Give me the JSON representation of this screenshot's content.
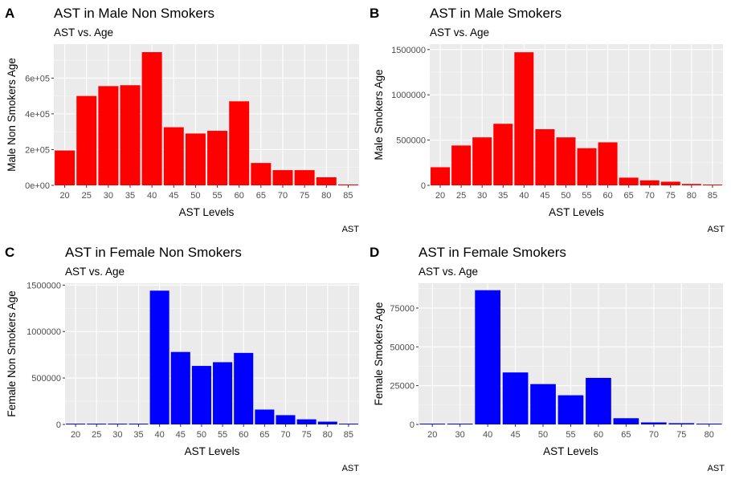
{
  "chart_data": [
    {
      "type": "bar",
      "tag": "A",
      "title": "AST in Male Non Smokers",
      "subtitle": "AST vs. Age",
      "xlabel": "AST Levels",
      "ylabel": "Male Non Smokers Age",
      "caption": "AST",
      "bar_color": "#ff0000",
      "categories": [
        "20",
        "25",
        "30",
        "35",
        "40",
        "45",
        "50",
        "55",
        "60",
        "65",
        "70",
        "75",
        "80",
        "85"
      ],
      "values": [
        195000,
        500000,
        555000,
        560000,
        745000,
        325000,
        290000,
        305000,
        470000,
        125000,
        85000,
        85000,
        45000,
        5000
      ],
      "ylim": [
        0,
        790000
      ],
      "yticks": [
        0,
        200000,
        400000,
        600000
      ],
      "ytick_labels": [
        "0e+00",
        "2e+05",
        "4e+05",
        "6e+05"
      ]
    },
    {
      "type": "bar",
      "tag": "B",
      "title": "AST in Male Smokers",
      "subtitle": "AST vs. Age",
      "xlabel": "AST Levels",
      "ylabel": "Male Smokers Age",
      "caption": "AST",
      "bar_color": "#ff0000",
      "categories": [
        "20",
        "25",
        "30",
        "35",
        "40",
        "45",
        "50",
        "55",
        "60",
        "65",
        "70",
        "75",
        "80",
        "85"
      ],
      "values": [
        200000,
        440000,
        530000,
        680000,
        1470000,
        620000,
        530000,
        410000,
        475000,
        85000,
        55000,
        40000,
        15000,
        5000
      ],
      "ylim": [
        0,
        1560000
      ],
      "yticks": [
        0,
        500000,
        1000000,
        1500000
      ],
      "ytick_labels": [
        "0",
        "500000",
        "1000000",
        "1500000"
      ]
    },
    {
      "type": "bar",
      "tag": "C",
      "title": "AST in Female Non Smokers",
      "subtitle": "AST vs. Age",
      "xlabel": "AST Levels",
      "ylabel": "Female Non Smokers Age",
      "caption": "AST",
      "bar_color": "#0000ff",
      "categories": [
        "20",
        "25",
        "30",
        "35",
        "40",
        "45",
        "50",
        "55",
        "60",
        "65",
        "70",
        "75",
        "80",
        "85"
      ],
      "values": [
        5000,
        5000,
        5000,
        0,
        1440000,
        780000,
        630000,
        670000,
        770000,
        160000,
        100000,
        55000,
        30000,
        5000
      ],
      "ylim": [
        0,
        1520000
      ],
      "yticks": [
        0,
        500000,
        1000000,
        1500000
      ],
      "ytick_labels": [
        "0",
        "500000",
        "1000000",
        "1500000"
      ]
    },
    {
      "type": "bar",
      "tag": "D",
      "title": "AST in Female Smokers",
      "subtitle": "AST vs. Age",
      "xlabel": "AST Levels",
      "ylabel": "Female Smokers Age",
      "caption": "AST",
      "bar_color": "#0000ff",
      "categories": [
        "20",
        "30",
        "40",
        "45",
        "50",
        "55",
        "60",
        "65",
        "70",
        "75",
        "80"
      ],
      "values": [
        400,
        400,
        86500,
        33500,
        26000,
        18800,
        30000,
        4000,
        1300,
        800,
        300
      ],
      "ylim": [
        0,
        91000
      ],
      "yticks": [
        0,
        25000,
        50000,
        75000
      ],
      "ytick_labels": [
        "0",
        "25000",
        "50000",
        "75000"
      ]
    }
  ]
}
